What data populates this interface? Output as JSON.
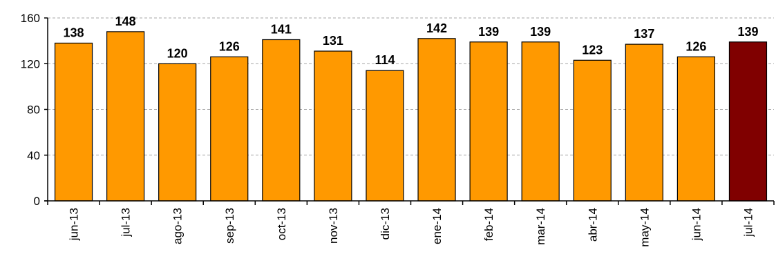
{
  "chart_data": {
    "type": "bar",
    "categories": [
      "jun-13",
      "jul-13",
      "ago-13",
      "sep-13",
      "oct-13",
      "nov-13",
      "dic-13",
      "ene-14",
      "feb-14",
      "mar-14",
      "abr-14",
      "may-14",
      "jun-14",
      "jul-14"
    ],
    "values": [
      138,
      148,
      120,
      126,
      141,
      131,
      114,
      142,
      139,
      139,
      123,
      137,
      126,
      139
    ],
    "data_labels": [
      "138",
      "148",
      "120",
      "126",
      "141",
      "131",
      "114",
      "142",
      "139",
      "139",
      "123",
      "137",
      "126",
      "139"
    ],
    "y_ticks": [
      0,
      40,
      80,
      120,
      160
    ],
    "y_tick_labels": [
      "0",
      "40",
      "80",
      "120",
      "160"
    ],
    "ylim": [
      0,
      160
    ],
    "title": "",
    "xlabel": "",
    "ylabel": "",
    "grid": "horizontal dashed",
    "legend": "none",
    "colors": {
      "bar": "#FF9900",
      "bar_highlight": "#800000",
      "bar_outline": "#000000",
      "grid": "#A6A6A6",
      "axis": "#000000"
    },
    "highlight_index": 13
  }
}
